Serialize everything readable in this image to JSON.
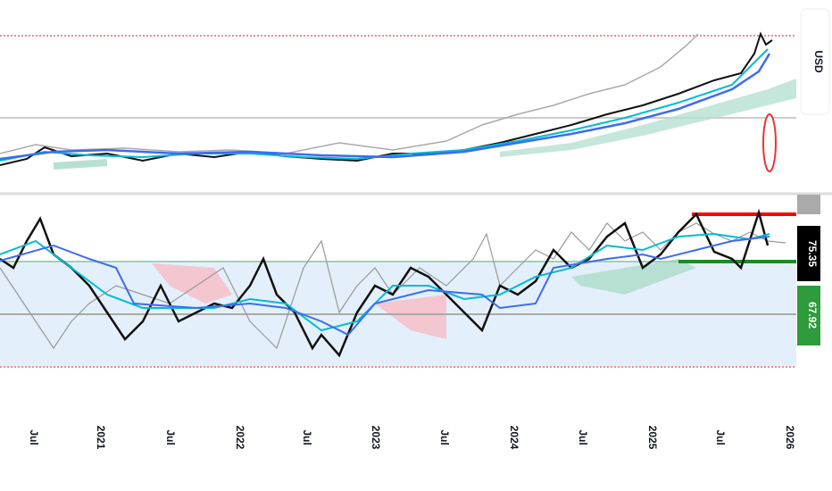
{
  "x_axis": {
    "labels": [
      "Jul",
      "2021",
      "Jul",
      "2022",
      "Jul",
      "2023",
      "Jul",
      "2024",
      "Jul",
      "2025",
      "Jul",
      "2026"
    ]
  },
  "currency": "USD",
  "badges": [
    "75.35",
    "67.92"
  ]
}
